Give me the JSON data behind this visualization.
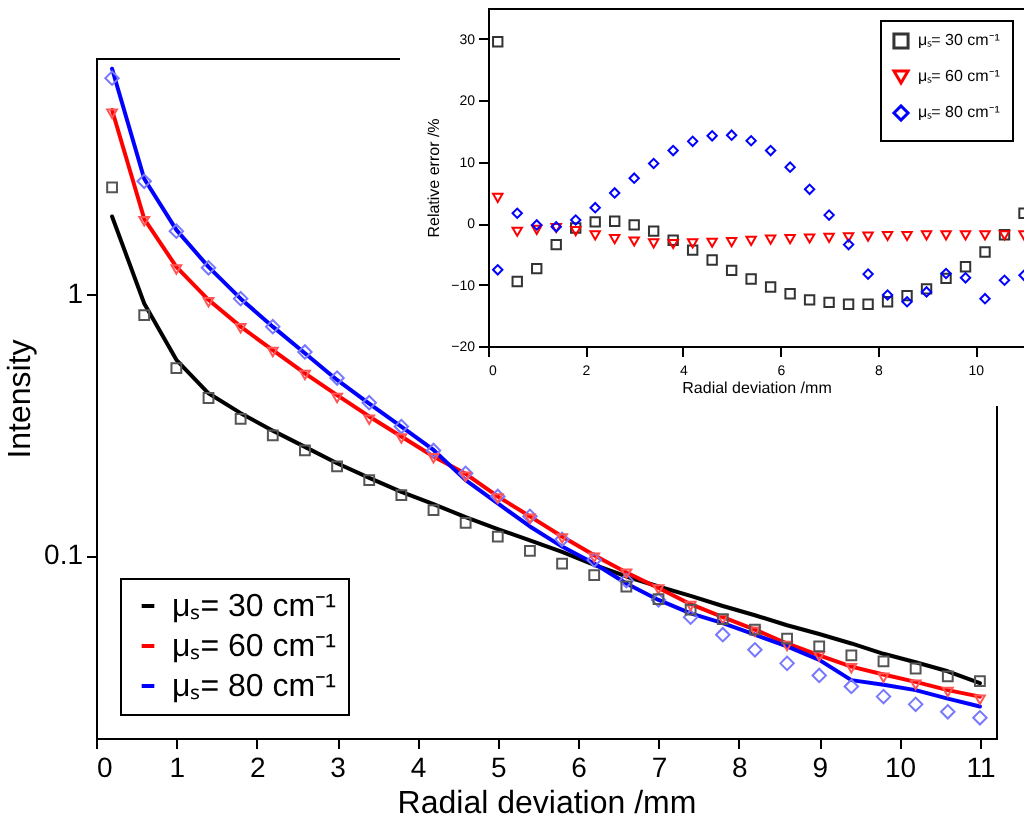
{
  "chart_data": [
    {
      "type": "line",
      "xlabel": "Radial deviation /mm",
      "ylabel": "Intensity",
      "xlim": [
        0,
        11.2
      ],
      "xticks": [
        0,
        1,
        2,
        3,
        4,
        5,
        6,
        7,
        8,
        9,
        10,
        11
      ],
      "ylim": [
        0.02,
        8
      ],
      "yticks": [
        0.1,
        1
      ],
      "log": "y",
      "grid": false,
      "legend": "bottom left",
      "x": [
        0.2,
        0.6,
        1.0,
        1.4,
        1.8,
        2.2,
        2.6,
        3.0,
        3.4,
        3.8,
        4.2,
        4.6,
        5.0,
        5.4,
        5.8,
        6.2,
        6.6,
        7.0,
        7.4,
        7.8,
        8.2,
        8.6,
        9.0,
        9.4,
        9.8,
        10.2,
        10.6,
        11.0
      ],
      "series": [
        {
          "name": "μₛ= 30 cm⁻¹",
          "color": "#000000",
          "values": [
            1.98,
            0.92,
            0.56,
            0.417,
            0.35,
            0.3,
            0.26,
            0.225,
            0.198,
            0.175,
            0.157,
            0.14,
            0.126,
            0.114,
            0.103,
            0.092,
            0.083,
            0.076,
            0.07,
            0.064,
            0.059,
            0.054,
            0.05,
            0.046,
            0.042,
            0.039,
            0.036,
            0.0324
          ]
        },
        {
          "name": "μₛ= 60 cm⁻¹",
          "color": "#ff0000",
          "values": [
            5.06,
            1.94,
            1.27,
            0.95,
            0.75,
            0.61,
            0.497,
            0.41,
            0.34,
            0.285,
            0.239,
            0.205,
            0.168,
            0.141,
            0.118,
            0.1,
            0.086,
            0.075,
            0.065,
            0.058,
            0.052,
            0.046,
            0.0414,
            0.0375,
            0.035,
            0.0328,
            0.0305,
            0.0288
          ]
        },
        {
          "name": "μₛ= 80 cm⁻¹",
          "color": "#0000ff",
          "values": [
            7.28,
            2.76,
            1.76,
            1.27,
            0.96,
            0.75,
            0.593,
            0.469,
            0.381,
            0.311,
            0.253,
            0.194,
            0.158,
            0.129,
            0.108,
            0.093,
            0.078,
            0.0675,
            0.06,
            0.055,
            0.0497,
            0.0448,
            0.0398,
            0.0333,
            0.032,
            0.0305,
            0.0283,
            0.0264
          ]
        },
        {
          "type": "scatter",
          "marker": "square",
          "color": "#555555",
          "values": [
            2.56,
            0.83,
            0.52,
            0.4,
            0.333,
            0.288,
            0.252,
            0.219,
            0.194,
            0.17,
            0.149,
            0.133,
            0.118,
            0.104,
            0.093,
            0.084,
            0.076,
            0.068,
            0.062,
            0.057,
            0.052,
            0.048,
            0.0448,
            0.0414,
            0.0393,
            0.0369,
            0.0344,
            0.033
          ]
        },
        {
          "type": "scatter",
          "marker": "triangle",
          "color": "#ff5555",
          "values": [
            4.9,
            1.9,
            1.24,
            0.93,
            0.74,
            0.6,
            0.49,
            0.4,
            0.33,
            0.28,
            0.235,
            0.2,
            0.165,
            0.138,
            0.116,
            0.098,
            0.085,
            0.074,
            0.064,
            0.057,
            0.051,
            0.045,
            0.041,
            0.037,
            0.034,
            0.032,
            0.03,
            0.028
          ]
        },
        {
          "type": "scatter",
          "marker": "diamond",
          "color": "#7777ff",
          "values": [
            6.7,
            2.7,
            1.74,
            1.26,
            0.96,
            0.75,
            0.6,
            0.477,
            0.384,
            0.311,
            0.252,
            0.206,
            0.168,
            0.141,
            0.115,
            0.096,
            0.08,
            0.0675,
            0.058,
            0.0497,
            0.0435,
            0.0386,
            0.0347,
            0.0315,
            0.0288,
            0.0269,
            0.0252,
            0.0239
          ]
        }
      ]
    },
    {
      "type": "scatter",
      "xlabel": "Radial deviation /mm",
      "ylabel": "Relative error /%",
      "xlim": [
        0,
        11
      ],
      "xticks": [
        0,
        2,
        4,
        6,
        8,
        10
      ],
      "ylim": [
        -20,
        35
      ],
      "yticks": [
        -20,
        -10,
        0,
        10,
        20,
        30
      ],
      "grid": false,
      "legend": "top right",
      "x": [
        0.2,
        0.6,
        1.0,
        1.4,
        1.8,
        2.2,
        2.6,
        3.0,
        3.4,
        3.8,
        4.2,
        4.6,
        5.0,
        5.4,
        5.8,
        6.2,
        6.6,
        7.0,
        7.4,
        7.8,
        8.2,
        8.6,
        9.0,
        9.4,
        9.8,
        10.2,
        10.6,
        11.0
      ],
      "series": [
        {
          "name": "μₛ= 30 cm⁻¹",
          "marker": "square",
          "color": "#333333",
          "values": [
            29.5,
            -9.5,
            -7.4,
            -3.5,
            -0.8,
            0.2,
            0.3,
            -0.3,
            -1.3,
            -2.8,
            -4.4,
            -6.0,
            -7.7,
            -9.1,
            -10.4,
            -11.5,
            -12.5,
            -12.9,
            -13.2,
            -13.2,
            -12.8,
            -11.8,
            -10.7,
            -9.0,
            -7.1,
            -4.7,
            -1.9,
            1.6
          ]
        },
        {
          "name": "μₛ= 60 cm⁻¹",
          "marker": "triangle",
          "color": "#ff0000",
          "values": [
            4.1,
            -1.4,
            -1.1,
            -0.8,
            -1.3,
            -2.0,
            -2.6,
            -3.0,
            -3.3,
            -3.4,
            -3.3,
            -3.2,
            -3.1,
            -2.9,
            -2.7,
            -2.6,
            -2.5,
            -2.4,
            -2.3,
            -2.2,
            -2.1,
            -2.1,
            -2.0,
            -2.0,
            -2.0,
            -2.0,
            -2.0,
            -2.0
          ]
        },
        {
          "name": "μₛ= 80 cm⁻¹",
          "marker": "diamond",
          "color": "#0000ff",
          "values": [
            -7.6,
            1.6,
            -0.3,
            -0.6,
            0.5,
            2.5,
            4.9,
            7.3,
            9.7,
            11.8,
            13.3,
            14.2,
            14.3,
            13.4,
            11.8,
            9.1,
            5.5,
            1.3,
            -3.5,
            -8.3,
            -11.7,
            -12.8,
            -11.2,
            -8.2,
            -8.9,
            -12.3,
            -9.3,
            -8.5
          ]
        }
      ]
    }
  ]
}
